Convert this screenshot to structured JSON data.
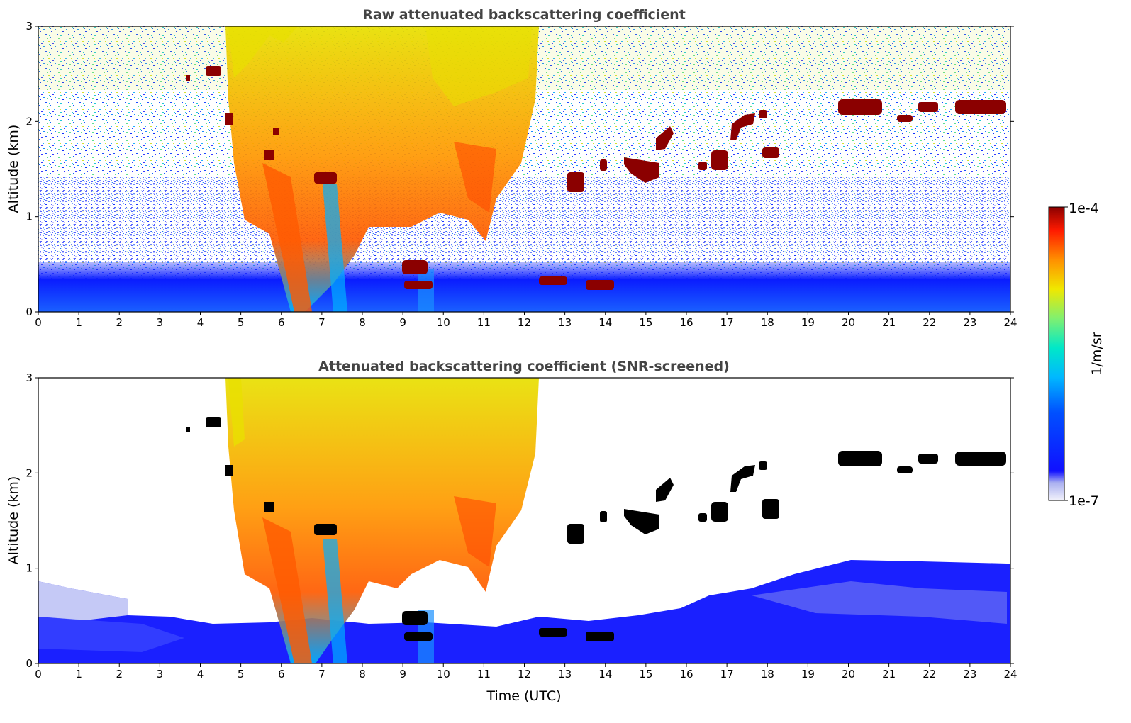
{
  "chart_data": [
    {
      "type": "heatmap",
      "title": "Raw attenuated backscattering coefficient",
      "xlabel": "",
      "ylabel": "Altitude (km)",
      "xlim": [
        0,
        24
      ],
      "ylim": [
        0,
        3
      ],
      "xticks": [
        "0",
        "1",
        "2",
        "3",
        "4",
        "5",
        "6",
        "7",
        "8",
        "9",
        "10",
        "11",
        "12",
        "13",
        "14",
        "15",
        "16",
        "17",
        "18",
        "19",
        "20",
        "21",
        "22",
        "23",
        "24"
      ],
      "yticks": [
        "0",
        "1",
        "2",
        "3"
      ],
      "screened": false,
      "features": [
        {
          "kind": "surface_aerosol_layer",
          "x": [
            0,
            24
          ],
          "y": [
            0,
            0.4
          ]
        },
        {
          "kind": "precipitation_fall_streaks",
          "x": [
            4.6,
            12.3
          ],
          "y": [
            0,
            3
          ]
        },
        {
          "kind": "low_cloud",
          "x": [
            9.0,
            9.6
          ],
          "y": [
            0.3,
            0.55
          ]
        },
        {
          "kind": "low_cloud",
          "x": [
            12.5,
            13.1
          ],
          "y": [
            0.28,
            0.38
          ]
        },
        {
          "kind": "low_cloud",
          "x": [
            13.5,
            14.3
          ],
          "y": [
            0.25,
            0.35
          ]
        },
        {
          "kind": "mid_cloud",
          "x": [
            13.1,
            13.5
          ],
          "y": [
            1.25,
            1.45
          ]
        },
        {
          "kind": "mid_cloud",
          "x": [
            14.6,
            15.5
          ],
          "y": [
            1.4,
            1.65
          ]
        },
        {
          "kind": "mid_cloud",
          "x": [
            15.5,
            16.0
          ],
          "y": [
            1.7,
            1.95
          ]
        },
        {
          "kind": "mid_cloud",
          "x": [
            16.5,
            17.0
          ],
          "y": [
            1.5,
            1.7
          ]
        },
        {
          "kind": "mid_cloud",
          "x": [
            17.0,
            17.6
          ],
          "y": [
            1.8,
            2.1
          ]
        },
        {
          "kind": "mid_cloud",
          "x": [
            17.8,
            18.3
          ],
          "y": [
            1.6,
            1.75
          ]
        },
        {
          "kind": "mid_cloud",
          "x": [
            19.6,
            20.8
          ],
          "y": [
            2.1,
            2.25
          ]
        },
        {
          "kind": "mid_cloud",
          "x": [
            21.2,
            21.6
          ],
          "y": [
            2.0,
            2.08
          ]
        },
        {
          "kind": "mid_cloud",
          "x": [
            21.8,
            22.3
          ],
          "y": [
            2.1,
            2.2
          ]
        },
        {
          "kind": "mid_cloud",
          "x": [
            22.7,
            23.9
          ],
          "y": [
            2.08,
            2.22
          ]
        }
      ]
    },
    {
      "type": "heatmap",
      "title": "Attenuated backscattering coefficient (SNR-screened)",
      "xlabel": "Time (UTC)",
      "ylabel": "Altitude (km)",
      "xlim": [
        0,
        24
      ],
      "ylim": [
        0,
        3
      ],
      "xticks": [
        "0",
        "1",
        "2",
        "3",
        "4",
        "5",
        "6",
        "7",
        "8",
        "9",
        "10",
        "11",
        "12",
        "13",
        "14",
        "15",
        "16",
        "17",
        "18",
        "19",
        "20",
        "21",
        "22",
        "23",
        "24"
      ],
      "yticks": [
        "0",
        "1",
        "2",
        "3"
      ],
      "screened": true
    }
  ],
  "colorbar": {
    "label": "1/m/sr",
    "max_label": "1e-4",
    "min_label": "1e-7",
    "scale": "log",
    "colormap": "jet",
    "colors": [
      "#e6e6f5",
      "#0000ff",
      "#0090ff",
      "#00e0d0",
      "#7cf07c",
      "#e8e800",
      "#ff9000",
      "#ff1800",
      "#8b0000"
    ]
  }
}
